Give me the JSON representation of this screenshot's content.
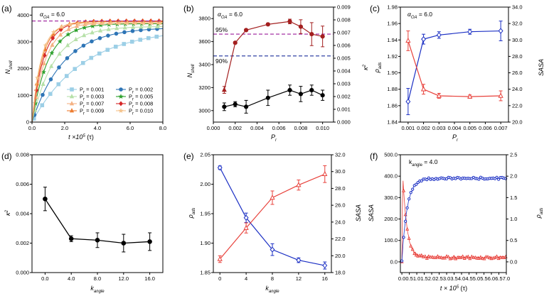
{
  "colors": {
    "dark_red": "#A31F1F",
    "red": "#E8413B",
    "blue": "#1B2FC4",
    "purple_dash": "#9B1B9B",
    "navy_dash": "#1B2F9B",
    "black": "#000000"
  },
  "chart_data": [
    {
      "id": "a",
      "panel_label": "(a)",
      "type": "line",
      "annotation": "α_OA = 6.0",
      "annotation_sym": "α",
      "annotation_sub": "OA",
      "annotation_val": "= 6.0",
      "xlabel": "t × 10⁵ (τ)",
      "xlabel_main": "t ×10",
      "xlabel_sup": "5",
      "xlabel_tail": " (τ)",
      "ylabel": "N_shell",
      "ylabel_main": "N",
      "ylabel_sub": "shell",
      "xlim": [
        0,
        8
      ],
      "ylim": [
        0,
        4300
      ],
      "xticks": [
        "0.0",
        "2.0",
        "4.0",
        "6.0",
        "8.0"
      ],
      "yticks": [
        "0",
        "1000",
        "2000",
        "3000",
        "4000"
      ],
      "hline": 3780,
      "series": [
        {
          "name": "Pr = 0.001",
          "p": "0.001",
          "color": "#9CCFE6",
          "marker": "square",
          "plateau": 3500,
          "k": 0.32
        },
        {
          "name": "Pr = 0.002",
          "p": "0.002",
          "color": "#2E75B6",
          "marker": "circle",
          "plateau": 3550,
          "k": 0.52
        },
        {
          "name": "Pr = 0.003",
          "p": "0.003",
          "color": "#B6E0A8",
          "marker": "triangle",
          "plateau": 3580,
          "k": 0.74
        },
        {
          "name": "Pr = 0.005",
          "p": "0.005",
          "color": "#2CA02C",
          "marker": "star",
          "plateau": 3680,
          "k": 1.0
        },
        {
          "name": "Pr = 0.007",
          "p": "0.007",
          "color": "#F4B183",
          "marker": "triangle",
          "plateau": 3720,
          "k": 1.2
        },
        {
          "name": "Pr = 0.008",
          "p": "0.008",
          "color": "#D62728",
          "marker": "diamond",
          "plateau": 3780,
          "k": 1.4
        },
        {
          "name": "Pr = 0.009",
          "p": "0.009",
          "color": "#ED7D31",
          "marker": "triangle",
          "plateau": 3760,
          "k": 1.6
        },
        {
          "name": "Pr = 0.010",
          "p": "0.010",
          "color": "#F5C28A",
          "marker": "star",
          "plateau": 3700,
          "k": 1.8
        }
      ]
    },
    {
      "id": "b",
      "panel_label": "(b)",
      "type": "line",
      "annotation_sym": "α",
      "annotation_sub": "OA",
      "annotation_val": "= 6.0",
      "xlabel": "P_r",
      "xlabel_main": "P",
      "xlabel_sub": "r",
      "ylabel_left_main": "N",
      "ylabel_left_sub": "shell",
      "ylabel_right": "κ²",
      "ylabel_right_main": "κ",
      "ylabel_right_sup": "2",
      "xlim": [
        0,
        0.011
      ],
      "ylim_left": [
        2900,
        3900
      ],
      "ylim_right": [
        0,
        0.009
      ],
      "xticks": [
        "0.000",
        "0.002",
        "0.004",
        "0.006",
        "0.008",
        "0.010"
      ],
      "yticks_left": [
        "3000",
        "3200",
        "3400",
        "3600",
        "3800"
      ],
      "yticks_right": [
        "0.000",
        "0.001",
        "0.002",
        "0.003",
        "0.004",
        "0.005",
        "0.006",
        "0.007",
        "0.008",
        "0.009"
      ],
      "hline_95": 3665,
      "label_95": "95%",
      "hline_90": 3475,
      "label_90": "90%",
      "x": [
        0.001,
        0.002,
        0.003,
        0.005,
        0.007,
        0.008,
        0.009,
        0.01
      ],
      "nshell": [
        3180,
        3590,
        3700,
        3750,
        3775,
        3730,
        3665,
        3645
      ],
      "nshell_err": [
        30,
        10,
        10,
        10,
        20,
        60,
        100,
        90
      ],
      "kappa": [
        0.0012,
        0.0014,
        0.0012,
        0.0019,
        0.0025,
        0.0022,
        0.0025,
        0.0021
      ],
      "kappa_err": [
        0.0003,
        0.0002,
        0.0005,
        0.0006,
        0.0004,
        0.0006,
        0.0004,
        0.0004
      ]
    },
    {
      "id": "c",
      "panel_label": "(c)",
      "type": "line",
      "annotation_sym": "α",
      "annotation_sub": "OA",
      "annotation_val": "= 6.0",
      "xlabel_main": "P",
      "xlabel_sub": "r",
      "ylabel_left_main": "ρ",
      "ylabel_left_sub": "ads",
      "ylabel_right": "SASA",
      "xlim": [
        0.0005,
        0.0075
      ],
      "ylim_left": [
        1.84,
        1.98
      ],
      "ylim_right": [
        20,
        34
      ],
      "xticks": [
        "0.001",
        "0.002",
        "0.003",
        "0.004",
        "0.005",
        "0.006",
        "0.007"
      ],
      "yticks_left": [
        "1.84",
        "1.86",
        "1.88",
        "1.90",
        "1.92",
        "1.94",
        "1.96",
        "1.98"
      ],
      "yticks_right": [
        "20.0",
        "22.0",
        "24.0",
        "26.0",
        "28.0",
        "30.0",
        "32.0",
        "34.0"
      ],
      "x": [
        0.001,
        0.002,
        0.003,
        0.005,
        0.007
      ],
      "rho": [
        1.865,
        1.941,
        1.946,
        1.95,
        1.951
      ],
      "rho_err": [
        0.016,
        0.006,
        0.004,
        0.003,
        0.012
      ],
      "sasa": [
        29.9,
        24.0,
        23.2,
        23.1,
        23.2
      ],
      "sasa_err": [
        1.2,
        0.6,
        0.3,
        0.2,
        0.6
      ]
    },
    {
      "id": "d",
      "panel_label": "(d)",
      "type": "line",
      "xlabel_main": "k",
      "xlabel_sub": "angle",
      "ylabel_main": "κ",
      "ylabel_sup": "2",
      "xlim": [
        -2,
        18
      ],
      "ylim": [
        0,
        0.008
      ],
      "xticks": [
        "0.0",
        "4.0",
        "8.0",
        "12.0",
        "16.0"
      ],
      "yticks": [
        "0.000",
        "0.002",
        "0.004",
        "0.006",
        "0.008"
      ],
      "x": [
        0,
        4,
        8,
        12,
        16
      ],
      "values": [
        0.005,
        0.0023,
        0.0022,
        0.002,
        0.0021
      ],
      "errors": [
        0.0008,
        0.0002,
        0.0005,
        0.0006,
        0.0006
      ]
    },
    {
      "id": "e",
      "panel_label": "(e)",
      "type": "line",
      "xlabel_main": "k",
      "xlabel_sub": "angle",
      "ylabel_left_main": "ρ",
      "ylabel_left_sub": "ads",
      "ylabel_right": "SASA",
      "xlim": [
        -1,
        17
      ],
      "ylim_left": [
        1.85,
        2.05
      ],
      "ylim_right": [
        18,
        32
      ],
      "xticks": [
        "0",
        "4",
        "8",
        "12",
        "16"
      ],
      "yticks_left": [
        "1.85",
        "1.90",
        "1.95",
        "2.00",
        "2.05"
      ],
      "yticks_right": [
        "18.0",
        "20.0",
        "22.0",
        "24.0",
        "26.0",
        "28.0",
        "30.0",
        "32.0"
      ],
      "x": [
        0,
        4,
        8,
        12,
        16
      ],
      "rho": [
        2.028,
        1.943,
        1.889,
        1.871,
        1.862
      ],
      "rho_err": [
        0.003,
        0.008,
        0.01,
        0.004,
        0.006
      ],
      "sasa": [
        19.6,
        23.3,
        26.9,
        28.4,
        29.7
      ],
      "sasa_err": [
        0.4,
        0.6,
        0.8,
        0.6,
        1.0
      ]
    },
    {
      "id": "f",
      "panel_label": "(f)",
      "type": "line",
      "annotation_main": "k",
      "annotation_sub": "angle",
      "annotation_val": "= 4.0",
      "xlabel_main": "t × 10",
      "xlabel_sup": "5",
      "xlabel_tail": " (τ)",
      "ylabel_left": "SASA",
      "ylabel_right_main": "ρ",
      "ylabel_right_sub": "ads",
      "xlim": [
        -0.1,
        7.0
      ],
      "ylim_left": [
        -50,
        500
      ],
      "ylim_right": [
        -0.25,
        2.5
      ],
      "xticks": [
        "0.0",
        "0.5",
        "1.0",
        "1.5",
        "2.0",
        "2.5",
        "3.0",
        "3.5",
        "4.0",
        "4.5",
        "5.0",
        "5.5",
        "6.0",
        "6.5",
        "7.0"
      ],
      "yticks_left": [
        "0.0",
        "100.0",
        "200.0",
        "300.0",
        "400.0",
        "500.0"
      ],
      "yticks_right": [
        "0.0",
        "0.5",
        "1.0",
        "1.5",
        "2.0",
        "2.5"
      ],
      "sasa_peak": 410,
      "sasa_plateau": 20,
      "rho_plateau": 1.95
    }
  ]
}
